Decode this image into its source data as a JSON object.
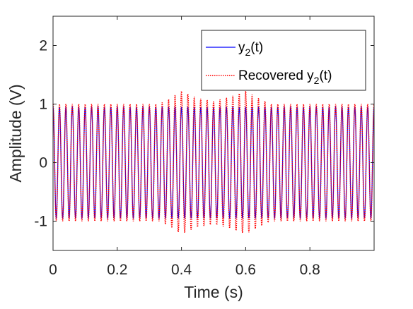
{
  "chart_data": {
    "type": "line",
    "xlabel": "Time (s)",
    "ylabel": "Amplitude (V)",
    "xlim": [
      0,
      1
    ],
    "ylim": [
      -1.5,
      2.5
    ],
    "xticks": [
      0,
      0.2,
      0.4,
      0.6,
      0.8
    ],
    "xtick_labels": [
      "0",
      "0.2",
      "0.4",
      "0.6",
      "0.8"
    ],
    "yticks": [
      -1,
      0,
      1,
      2
    ],
    "ytick_labels": [
      "-1",
      "0",
      "1",
      "2"
    ],
    "grid": false,
    "legend_position": "top-right",
    "signal_frequency_hz": 50,
    "series": [
      {
        "name": "y2(t)",
        "name_base": "y",
        "name_sub": "2",
        "name_suffix": "(t)",
        "style": "solid",
        "color": "#0000ff",
        "amplitude": 0.95,
        "amplitude_envelope": [
          {
            "t": 0.0,
            "a": 0.95
          },
          {
            "t": 1.0,
            "a": 0.95
          }
        ]
      },
      {
        "name": "Recovered y2(t)",
        "name_base": "Recovered y",
        "name_sub": "2",
        "name_suffix": "(t)",
        "style": "dotted",
        "color": "#ff0000",
        "amplitude_envelope": [
          {
            "t": 0.0,
            "a": 1.0
          },
          {
            "t": 0.33,
            "a": 1.0
          },
          {
            "t": 0.36,
            "a": 1.08
          },
          {
            "t": 0.4,
            "a": 1.22
          },
          {
            "t": 0.45,
            "a": 1.1
          },
          {
            "t": 0.5,
            "a": 1.05
          },
          {
            "t": 0.55,
            "a": 1.12
          },
          {
            "t": 0.6,
            "a": 1.22
          },
          {
            "t": 0.64,
            "a": 1.1
          },
          {
            "t": 0.68,
            "a": 1.0
          },
          {
            "t": 1.0,
            "a": 1.0
          }
        ]
      }
    ]
  }
}
